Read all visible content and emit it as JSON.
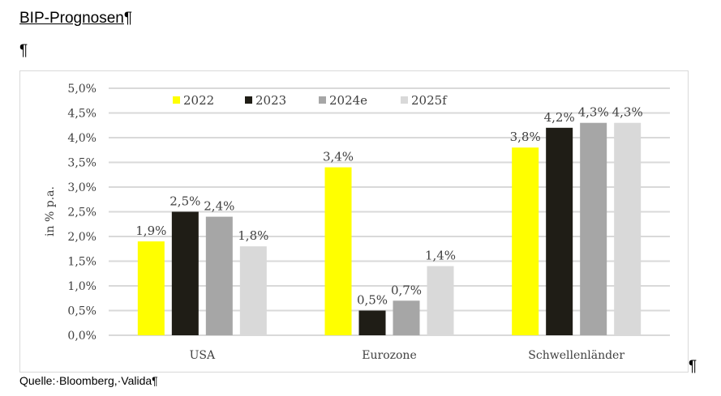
{
  "document": {
    "title": "BIP-Prognosen",
    "pilcrow": "¶",
    "source": "Quelle:·Bloomberg,·Valida¶"
  },
  "chart_data": {
    "type": "bar",
    "title": "",
    "xlabel": "",
    "ylabel": "in % p.a.",
    "ylim": [
      0,
      5
    ],
    "yticks": [
      "0,0%",
      "0,5%",
      "1,0%",
      "1,5%",
      "2,0%",
      "2,5%",
      "3,0%",
      "3,5%",
      "4,0%",
      "4,5%",
      "5,0%"
    ],
    "grid": true,
    "legend": "top",
    "categories": [
      "USA",
      "Eurozone",
      "Schwellenländer"
    ],
    "series": [
      {
        "name": "2022",
        "color": "#ffff00",
        "values": [
          1.9,
          3.4,
          3.8
        ],
        "labels": [
          "1,9%",
          "3,4%",
          "3,8%"
        ]
      },
      {
        "name": "2023",
        "color": "#1f1d16",
        "values": [
          2.5,
          0.5,
          4.2
        ],
        "labels": [
          "2,5%",
          "0,5%",
          "4,2%"
        ]
      },
      {
        "name": "2024e",
        "color": "#a6a6a6",
        "values": [
          2.4,
          0.7,
          4.3
        ],
        "labels": [
          "2,4%",
          "0,7%",
          "4,3%"
        ]
      },
      {
        "name": "2025f",
        "color": "#d9d9d9",
        "values": [
          1.8,
          1.4,
          4.3
        ],
        "labels": [
          "1,8%",
          "1,4%",
          "4,3%"
        ]
      }
    ]
  }
}
